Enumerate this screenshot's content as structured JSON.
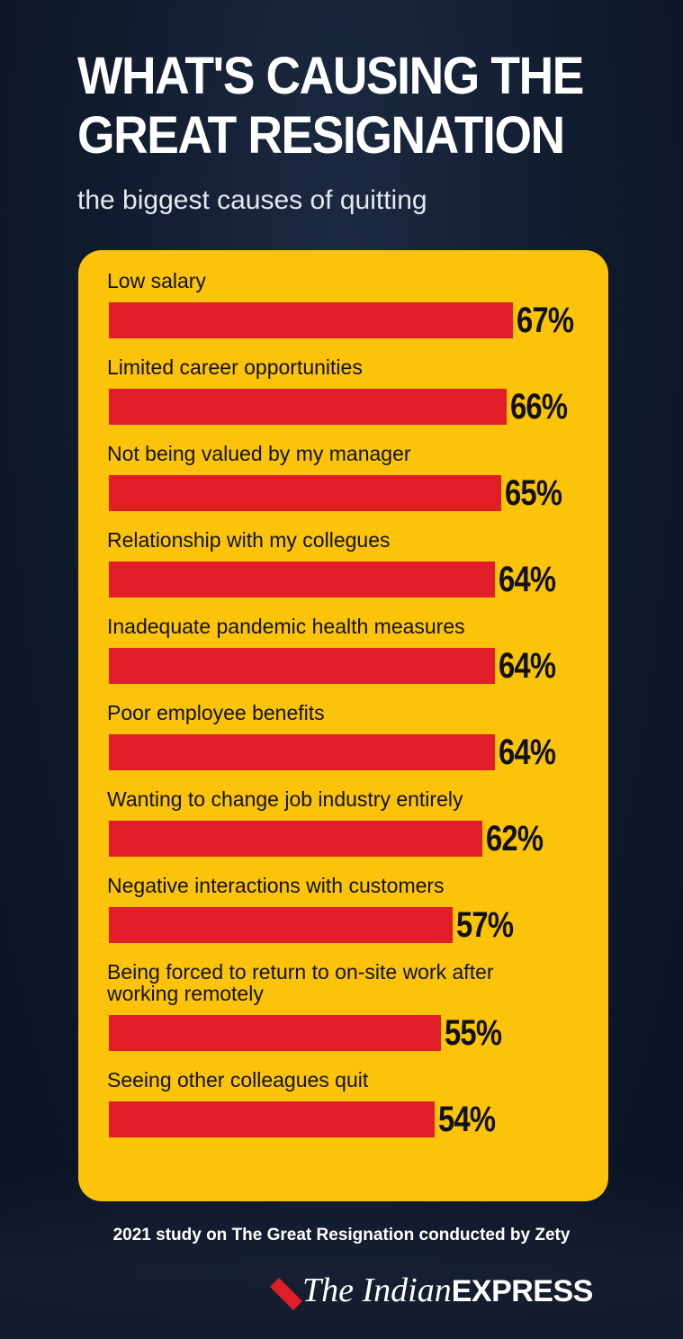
{
  "header": {
    "title": "WHAT'S CAUSING THE GREAT RESIGNATION",
    "subtitle": "the biggest causes of quitting"
  },
  "chart_data": {
    "type": "bar",
    "orientation": "horizontal",
    "title": "WHAT'S CAUSING THE GREAT RESIGNATION",
    "subtitle": "the biggest causes of quitting",
    "categories": [
      "Low salary",
      "Limited career opportunities",
      "Not being valued by my manager",
      "Relationship with my collegues",
      "Inadequate pandemic health measures",
      "Poor employee benefits",
      "Wanting to change job industry entirely",
      "Negative interactions with customers",
      "Being forced to return to on-site work after working remotely",
      "Seeing other colleagues quit"
    ],
    "values": [
      67,
      66,
      65,
      64,
      64,
      64,
      62,
      57,
      55,
      54
    ],
    "value_labels": [
      "67%",
      "66%",
      "65%",
      "64%",
      "64%",
      "64%",
      "62%",
      "57%",
      "55%",
      "54%"
    ],
    "xlim": [
      0,
      100
    ],
    "grid": false,
    "bar_color": "#e11d28",
    "panel_color": "#fbc30a"
  },
  "footer": {
    "source": "2021 study on The Great Resignation conducted by Zety",
    "logo_text_serif": "The Indian",
    "logo_text_bold": "EXPRESS",
    "logo_color": "#e11d28"
  }
}
